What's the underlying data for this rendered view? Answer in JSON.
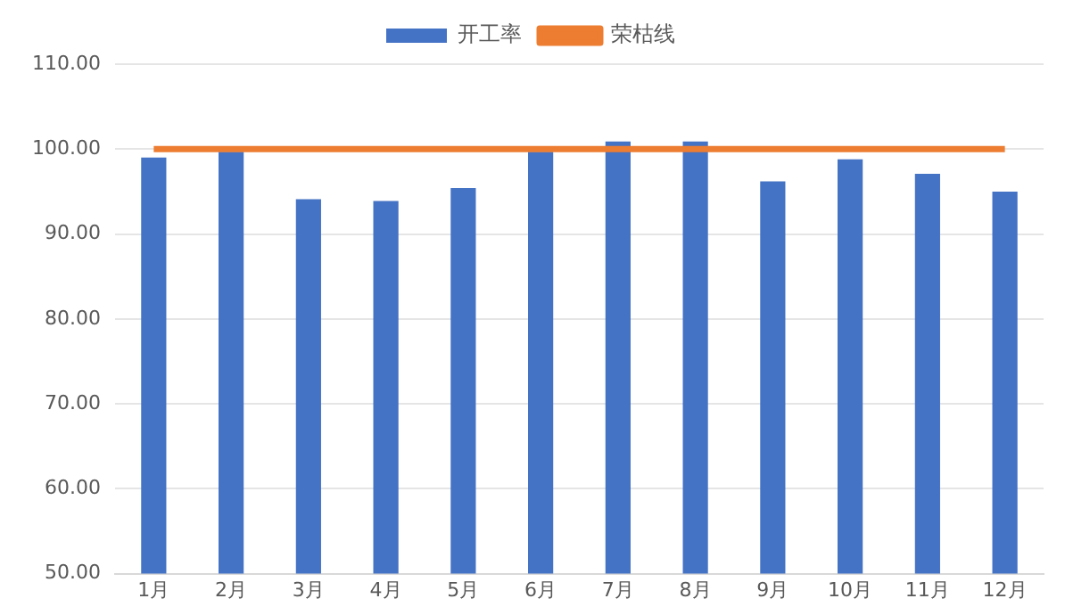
{
  "chart_data": {
    "type": "bar",
    "categories": [
      "1月",
      "2月",
      "3月",
      "4月",
      "5月",
      "6月",
      "7月",
      "8月",
      "9月",
      "10月",
      "11月",
      "12月"
    ],
    "series": [
      {
        "name": "开工率",
        "color": "#4472c4",
        "values": [
          99.0,
          99.7,
          94.1,
          93.9,
          95.4,
          99.7,
          100.9,
          100.9,
          96.2,
          98.8,
          97.1,
          95.0
        ]
      },
      {
        "name": "荣枯线",
        "type": "line",
        "color": "#ed7d31",
        "values": [
          100,
          100,
          100,
          100,
          100,
          100,
          100,
          100,
          100,
          100,
          100,
          100
        ]
      }
    ],
    "ylim": [
      50,
      110
    ],
    "yticks": [
      {
        "value": 50,
        "label": "50.00"
      },
      {
        "value": 60,
        "label": "60.00"
      },
      {
        "value": 70,
        "label": "70.00"
      },
      {
        "value": 80,
        "label": "80.00"
      },
      {
        "value": 90,
        "label": "90.00"
      },
      {
        "value": 100,
        "label": "100.00"
      },
      {
        "value": 110,
        "label": "110.00"
      }
    ],
    "grid": "y",
    "legend": "top",
    "marker": "none"
  }
}
